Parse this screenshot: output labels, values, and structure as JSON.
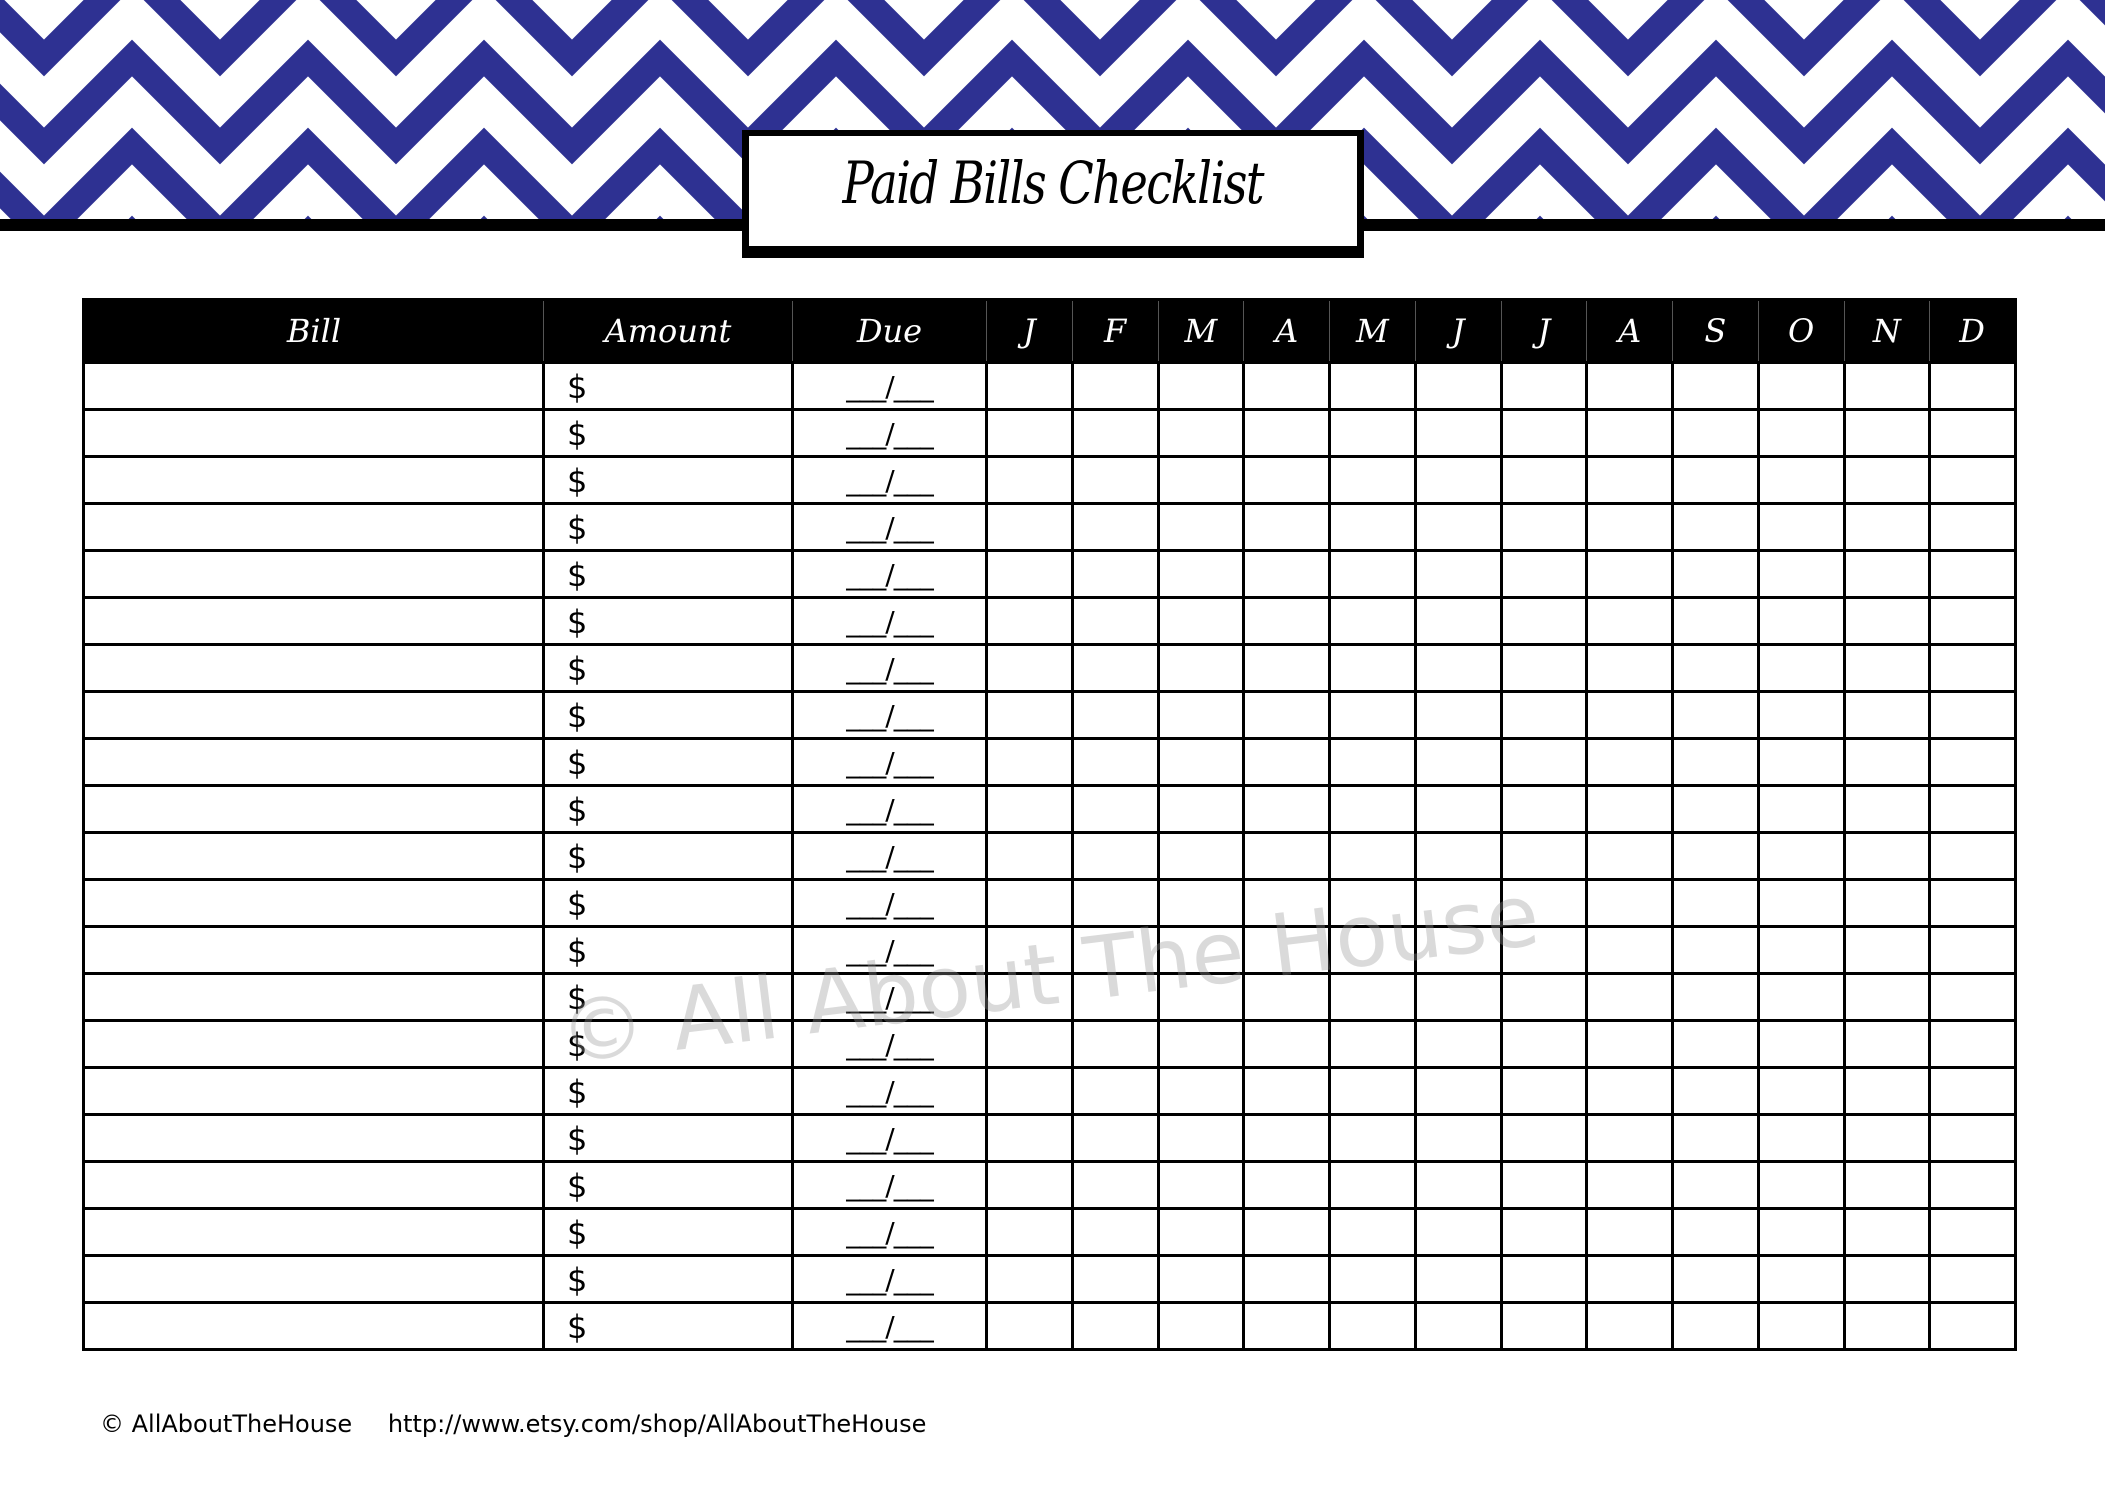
{
  "title": "Paid Bills Checklist",
  "colors": {
    "chevron": "#2e3192",
    "header_bg": "#000000"
  },
  "table": {
    "headers": [
      "Bill",
      "Amount",
      "Due",
      "J",
      "F",
      "M",
      "A",
      "M",
      "J",
      "J",
      "A",
      "S",
      "O",
      "N",
      "D"
    ],
    "rows": [
      {
        "amount": "$",
        "due": "___/___"
      },
      {
        "amount": "$",
        "due": "___/___"
      },
      {
        "amount": "$",
        "due": "___/___"
      },
      {
        "amount": "$",
        "due": "___/___"
      },
      {
        "amount": "$",
        "due": "___/___"
      },
      {
        "amount": "$",
        "due": "___/___"
      },
      {
        "amount": "$",
        "due": "___/___"
      },
      {
        "amount": "$",
        "due": "___/___"
      },
      {
        "amount": "$",
        "due": "___/___"
      },
      {
        "amount": "$",
        "due": "___/___"
      },
      {
        "amount": "$",
        "due": "___/___"
      },
      {
        "amount": "$",
        "due": "___/___"
      },
      {
        "amount": "$",
        "due": "___/___"
      },
      {
        "amount": "$",
        "due": "___/___"
      },
      {
        "amount": "$",
        "due": "___/___"
      },
      {
        "amount": "$",
        "due": "___/___"
      },
      {
        "amount": "$",
        "due": "___/___"
      },
      {
        "amount": "$",
        "due": "___/___"
      },
      {
        "amount": "$",
        "due": "___/___"
      },
      {
        "amount": "$",
        "due": "___/___"
      },
      {
        "amount": "$",
        "due": "___/___"
      }
    ]
  },
  "watermark": "© All About The House",
  "footer": {
    "copyright": "© AllAboutTheHouse",
    "url": "http://www.etsy.com/shop/AllAboutTheHouse"
  }
}
